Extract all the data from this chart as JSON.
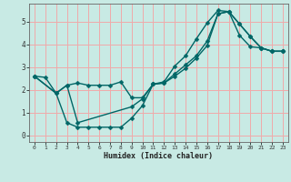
{
  "xlabel": "Humidex (Indice chaleur)",
  "bg_color": "#c8eae4",
  "grid_color": "#f0aaaa",
  "line_color": "#006666",
  "line1_x": [
    0,
    1,
    2,
    3,
    4,
    5,
    6,
    7,
    8,
    9,
    10,
    11,
    12,
    13,
    14,
    15,
    16,
    17,
    18,
    19,
    20,
    21,
    22,
    23
  ],
  "line1_y": [
    2.6,
    2.55,
    1.85,
    2.2,
    2.3,
    2.2,
    2.2,
    2.2,
    2.35,
    1.65,
    1.65,
    2.25,
    2.35,
    3.05,
    3.5,
    4.25,
    4.95,
    5.5,
    5.45,
    4.4,
    3.9,
    3.85,
    3.7,
    3.7
  ],
  "line2_x": [
    0,
    2,
    3,
    4,
    9,
    10,
    11,
    12,
    13,
    14,
    15,
    16,
    17,
    18,
    19,
    20,
    21,
    22,
    23
  ],
  "line2_y": [
    2.6,
    1.85,
    2.2,
    0.55,
    1.25,
    1.6,
    2.25,
    2.3,
    2.7,
    3.1,
    3.5,
    4.15,
    5.35,
    5.45,
    4.9,
    4.35,
    3.85,
    3.7,
    3.7
  ],
  "line3_x": [
    0,
    2,
    3,
    4,
    5,
    6,
    7,
    8,
    9,
    10,
    11,
    12,
    13,
    14,
    15,
    16,
    17,
    18,
    19,
    20,
    21,
    22,
    23
  ],
  "line3_y": [
    2.6,
    1.85,
    0.55,
    0.35,
    0.35,
    0.35,
    0.35,
    0.35,
    0.75,
    1.3,
    2.25,
    2.3,
    2.6,
    2.95,
    3.4,
    3.95,
    5.35,
    5.45,
    4.9,
    4.35,
    3.85,
    3.7,
    3.7
  ],
  "xlim": [
    -0.5,
    23.5
  ],
  "ylim": [
    -0.3,
    5.8
  ],
  "yticks": [
    0,
    1,
    2,
    3,
    4,
    5
  ],
  "xticks": [
    0,
    1,
    2,
    3,
    4,
    5,
    6,
    7,
    8,
    9,
    10,
    11,
    12,
    13,
    14,
    15,
    16,
    17,
    18,
    19,
    20,
    21,
    22,
    23
  ]
}
